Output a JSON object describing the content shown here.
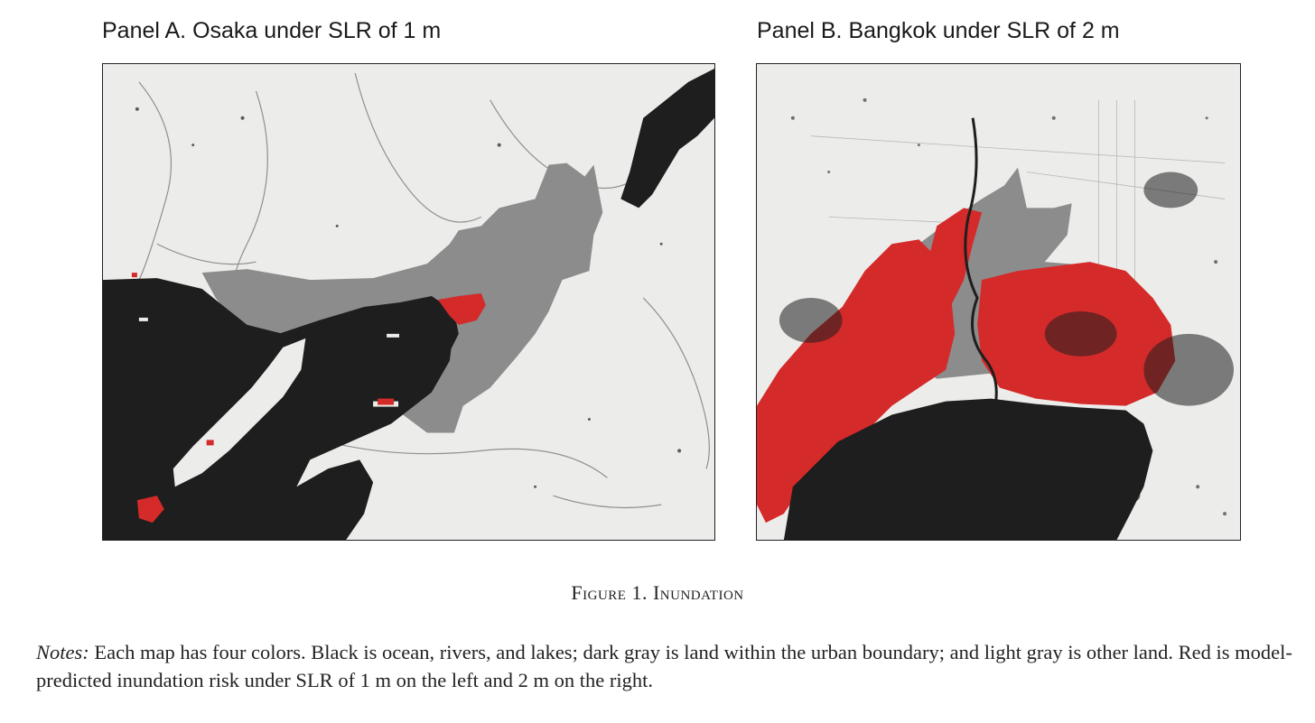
{
  "panels": {
    "a": {
      "title": "Panel A. Osaka under SLR of 1 m"
    },
    "b": {
      "title": "Panel B. Bangkok under SLR of 2 m"
    }
  },
  "legend_colors": {
    "water": "#1e1e1e",
    "urban_land": "#8c8c8c",
    "other_land": "#ececea",
    "inundation": "#d42a2a"
  },
  "figure": {
    "caption": "Figure 1. Inundation",
    "notes_lead": "Notes:",
    "notes_text": " Each map has four colors. Black is ocean, rivers, and lakes; dark gray is land within the urban boundary; and light gray is other land. Red is model-predicted inundation risk under SLR of 1 m on the left and 2 m on the right."
  }
}
